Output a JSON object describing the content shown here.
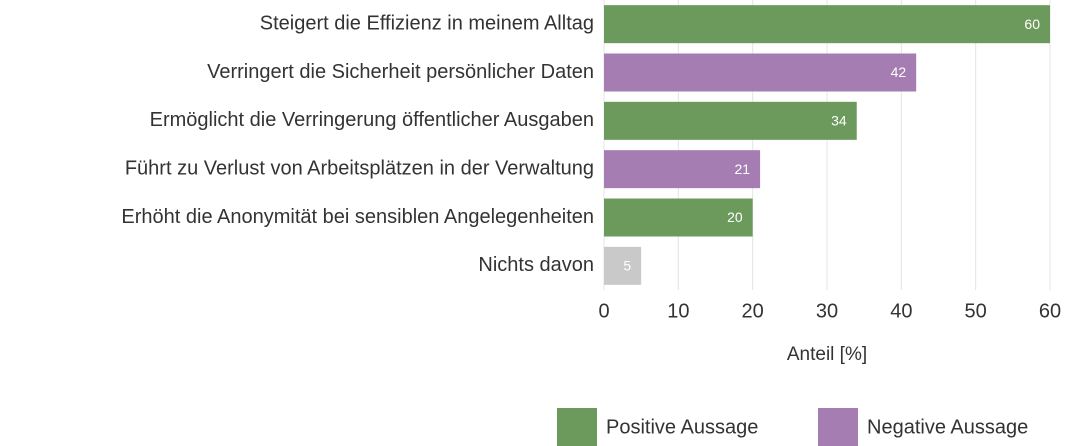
{
  "chart_data": {
    "type": "bar",
    "orientation": "horizontal",
    "categories": [
      "Steigert die Effizienz in meinem Alltag",
      "Verringert die Sicherheit persönlicher Daten",
      "Ermöglicht die Verringerung öffentlicher Ausgaben",
      "Führt zu Verlust von Arbeitsplätzen in der Verwaltung",
      "Erhöht die Anonymität bei sensiblen Angelegenheiten",
      "Nichts davon"
    ],
    "values": [
      60,
      42,
      34,
      21,
      20,
      5
    ],
    "colors": [
      "#6b9a5c",
      "#a67db2",
      "#6b9a5c",
      "#a67db2",
      "#6b9a5c",
      "#c9c9c9"
    ],
    "xlabel": "Anteil [%]",
    "xlim": [
      0,
      60
    ],
    "xticks": [
      0,
      10,
      20,
      30,
      40,
      50,
      60
    ],
    "grid": true,
    "legend": [
      {
        "name": "Positive Aussage",
        "color": "#6b9a5c"
      },
      {
        "name": "Negative Aussage",
        "color": "#a67db2"
      }
    ],
    "legend_position": "bottom-right"
  }
}
